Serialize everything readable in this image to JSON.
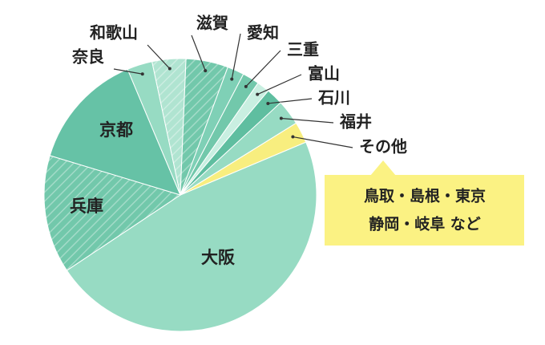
{
  "chart_data": {
    "type": "pie",
    "categories": [
      "大阪",
      "兵庫",
      "京都",
      "奈良",
      "和歌山",
      "滋賀",
      "愛知",
      "三重",
      "富山",
      "石川",
      "福井",
      "その他"
    ],
    "values": [
      47,
      14,
      14,
      3,
      4,
      5,
      2,
      2,
      1.5,
      2,
      3,
      2.5
    ],
    "colors": [
      "#97dbc3",
      "#72c8ab",
      "#66c2a6",
      "#97dbc3",
      "#b0e4d1",
      "#72c8ab",
      "#7fd0b6",
      "#72c8ab",
      "#c9efe1",
      "#5fbea0",
      "#97dbc3",
      "#f8ee7f"
    ],
    "hatched": [
      false,
      true,
      false,
      false,
      true,
      true,
      false,
      false,
      false,
      false,
      false,
      false
    ],
    "annotation": [
      "鳥取・島根・東京",
      "静岡・岐阜 など"
    ]
  }
}
